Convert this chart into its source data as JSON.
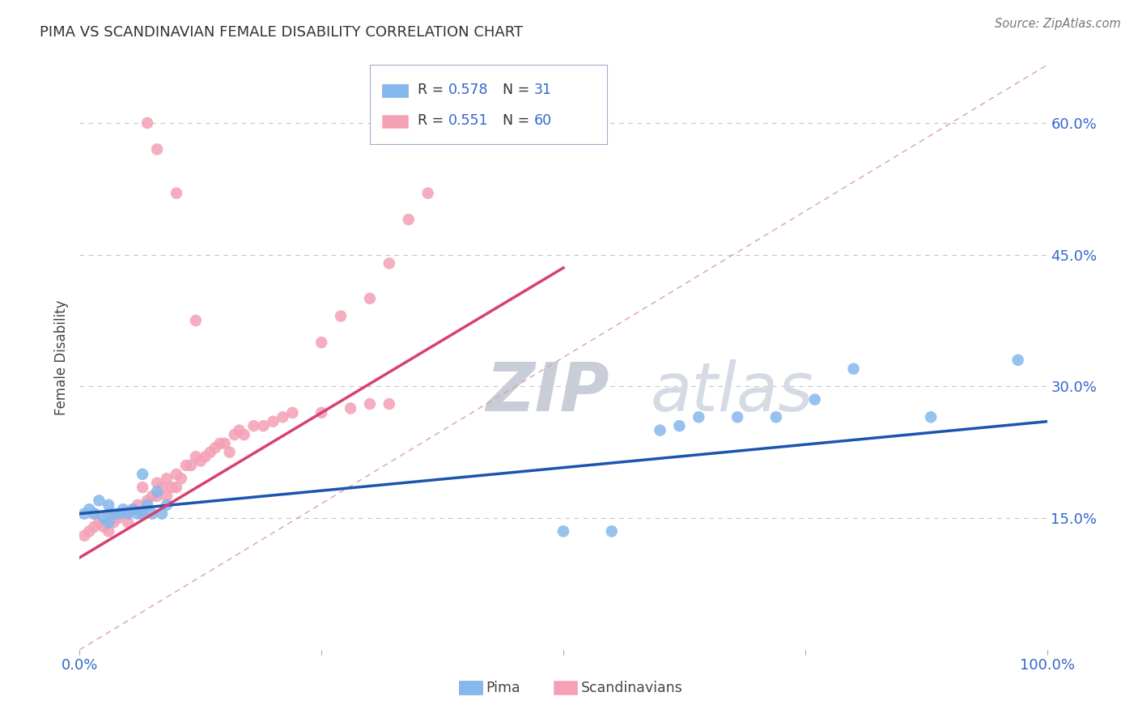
{
  "title": "PIMA VS SCANDINAVIAN FEMALE DISABILITY CORRELATION CHART",
  "source_text": "Source: ZipAtlas.com",
  "ylabel": "Female Disability",
  "x_min": 0.0,
  "x_max": 1.0,
  "y_min": 0.0,
  "y_max": 0.666,
  "y_ticks": [
    0.15,
    0.3,
    0.45,
    0.6
  ],
  "y_tick_labels": [
    "15.0%",
    "30.0%",
    "45.0%",
    "60.0%"
  ],
  "pima_color": "#85B8EC",
  "scan_color": "#F4A0B5",
  "pima_line_color": "#1A55B0",
  "scan_line_color": "#D84070",
  "ref_line_color": "#D8A0B0",
  "background_color": "#FFFFFF",
  "watermark_color": "#D5DAE8",
  "pima_x": [
    0.005,
    0.01,
    0.015,
    0.02,
    0.025,
    0.03,
    0.03,
    0.035,
    0.04,
    0.045,
    0.05,
    0.055,
    0.06,
    0.065,
    0.065,
    0.07,
    0.075,
    0.08,
    0.085,
    0.09,
    0.5,
    0.55,
    0.6,
    0.62,
    0.64,
    0.68,
    0.72,
    0.76,
    0.8,
    0.88,
    0.97
  ],
  "pima_y": [
    0.155,
    0.16,
    0.155,
    0.17,
    0.15,
    0.165,
    0.145,
    0.155,
    0.155,
    0.16,
    0.155,
    0.16,
    0.155,
    0.155,
    0.2,
    0.165,
    0.155,
    0.18,
    0.155,
    0.165,
    0.135,
    0.135,
    0.25,
    0.255,
    0.265,
    0.265,
    0.265,
    0.285,
    0.32,
    0.265,
    0.33
  ],
  "scan_x": [
    0.005,
    0.01,
    0.015,
    0.015,
    0.02,
    0.025,
    0.03,
    0.03,
    0.035,
    0.04,
    0.045,
    0.05,
    0.05,
    0.055,
    0.06,
    0.065,
    0.065,
    0.07,
    0.075,
    0.08,
    0.08,
    0.085,
    0.09,
    0.09,
    0.095,
    0.1,
    0.1,
    0.105,
    0.11,
    0.115,
    0.12,
    0.125,
    0.13,
    0.135,
    0.14,
    0.145,
    0.15,
    0.155,
    0.16,
    0.165,
    0.17,
    0.18,
    0.19,
    0.2,
    0.21,
    0.22,
    0.25,
    0.28,
    0.3,
    0.32,
    0.25,
    0.27,
    0.3,
    0.32,
    0.34,
    0.36,
    0.12,
    0.1,
    0.08,
    0.07
  ],
  "scan_y": [
    0.13,
    0.135,
    0.14,
    0.155,
    0.145,
    0.14,
    0.155,
    0.135,
    0.145,
    0.15,
    0.155,
    0.155,
    0.145,
    0.16,
    0.165,
    0.155,
    0.185,
    0.17,
    0.175,
    0.19,
    0.175,
    0.185,
    0.195,
    0.175,
    0.185,
    0.185,
    0.2,
    0.195,
    0.21,
    0.21,
    0.22,
    0.215,
    0.22,
    0.225,
    0.23,
    0.235,
    0.235,
    0.225,
    0.245,
    0.25,
    0.245,
    0.255,
    0.255,
    0.26,
    0.265,
    0.27,
    0.27,
    0.275,
    0.28,
    0.28,
    0.35,
    0.38,
    0.4,
    0.44,
    0.49,
    0.52,
    0.375,
    0.52,
    0.57,
    0.6
  ],
  "legend_r_pima": "0.578",
  "legend_n_pima": "31",
  "legend_r_scan": "0.551",
  "legend_n_scan": "60"
}
